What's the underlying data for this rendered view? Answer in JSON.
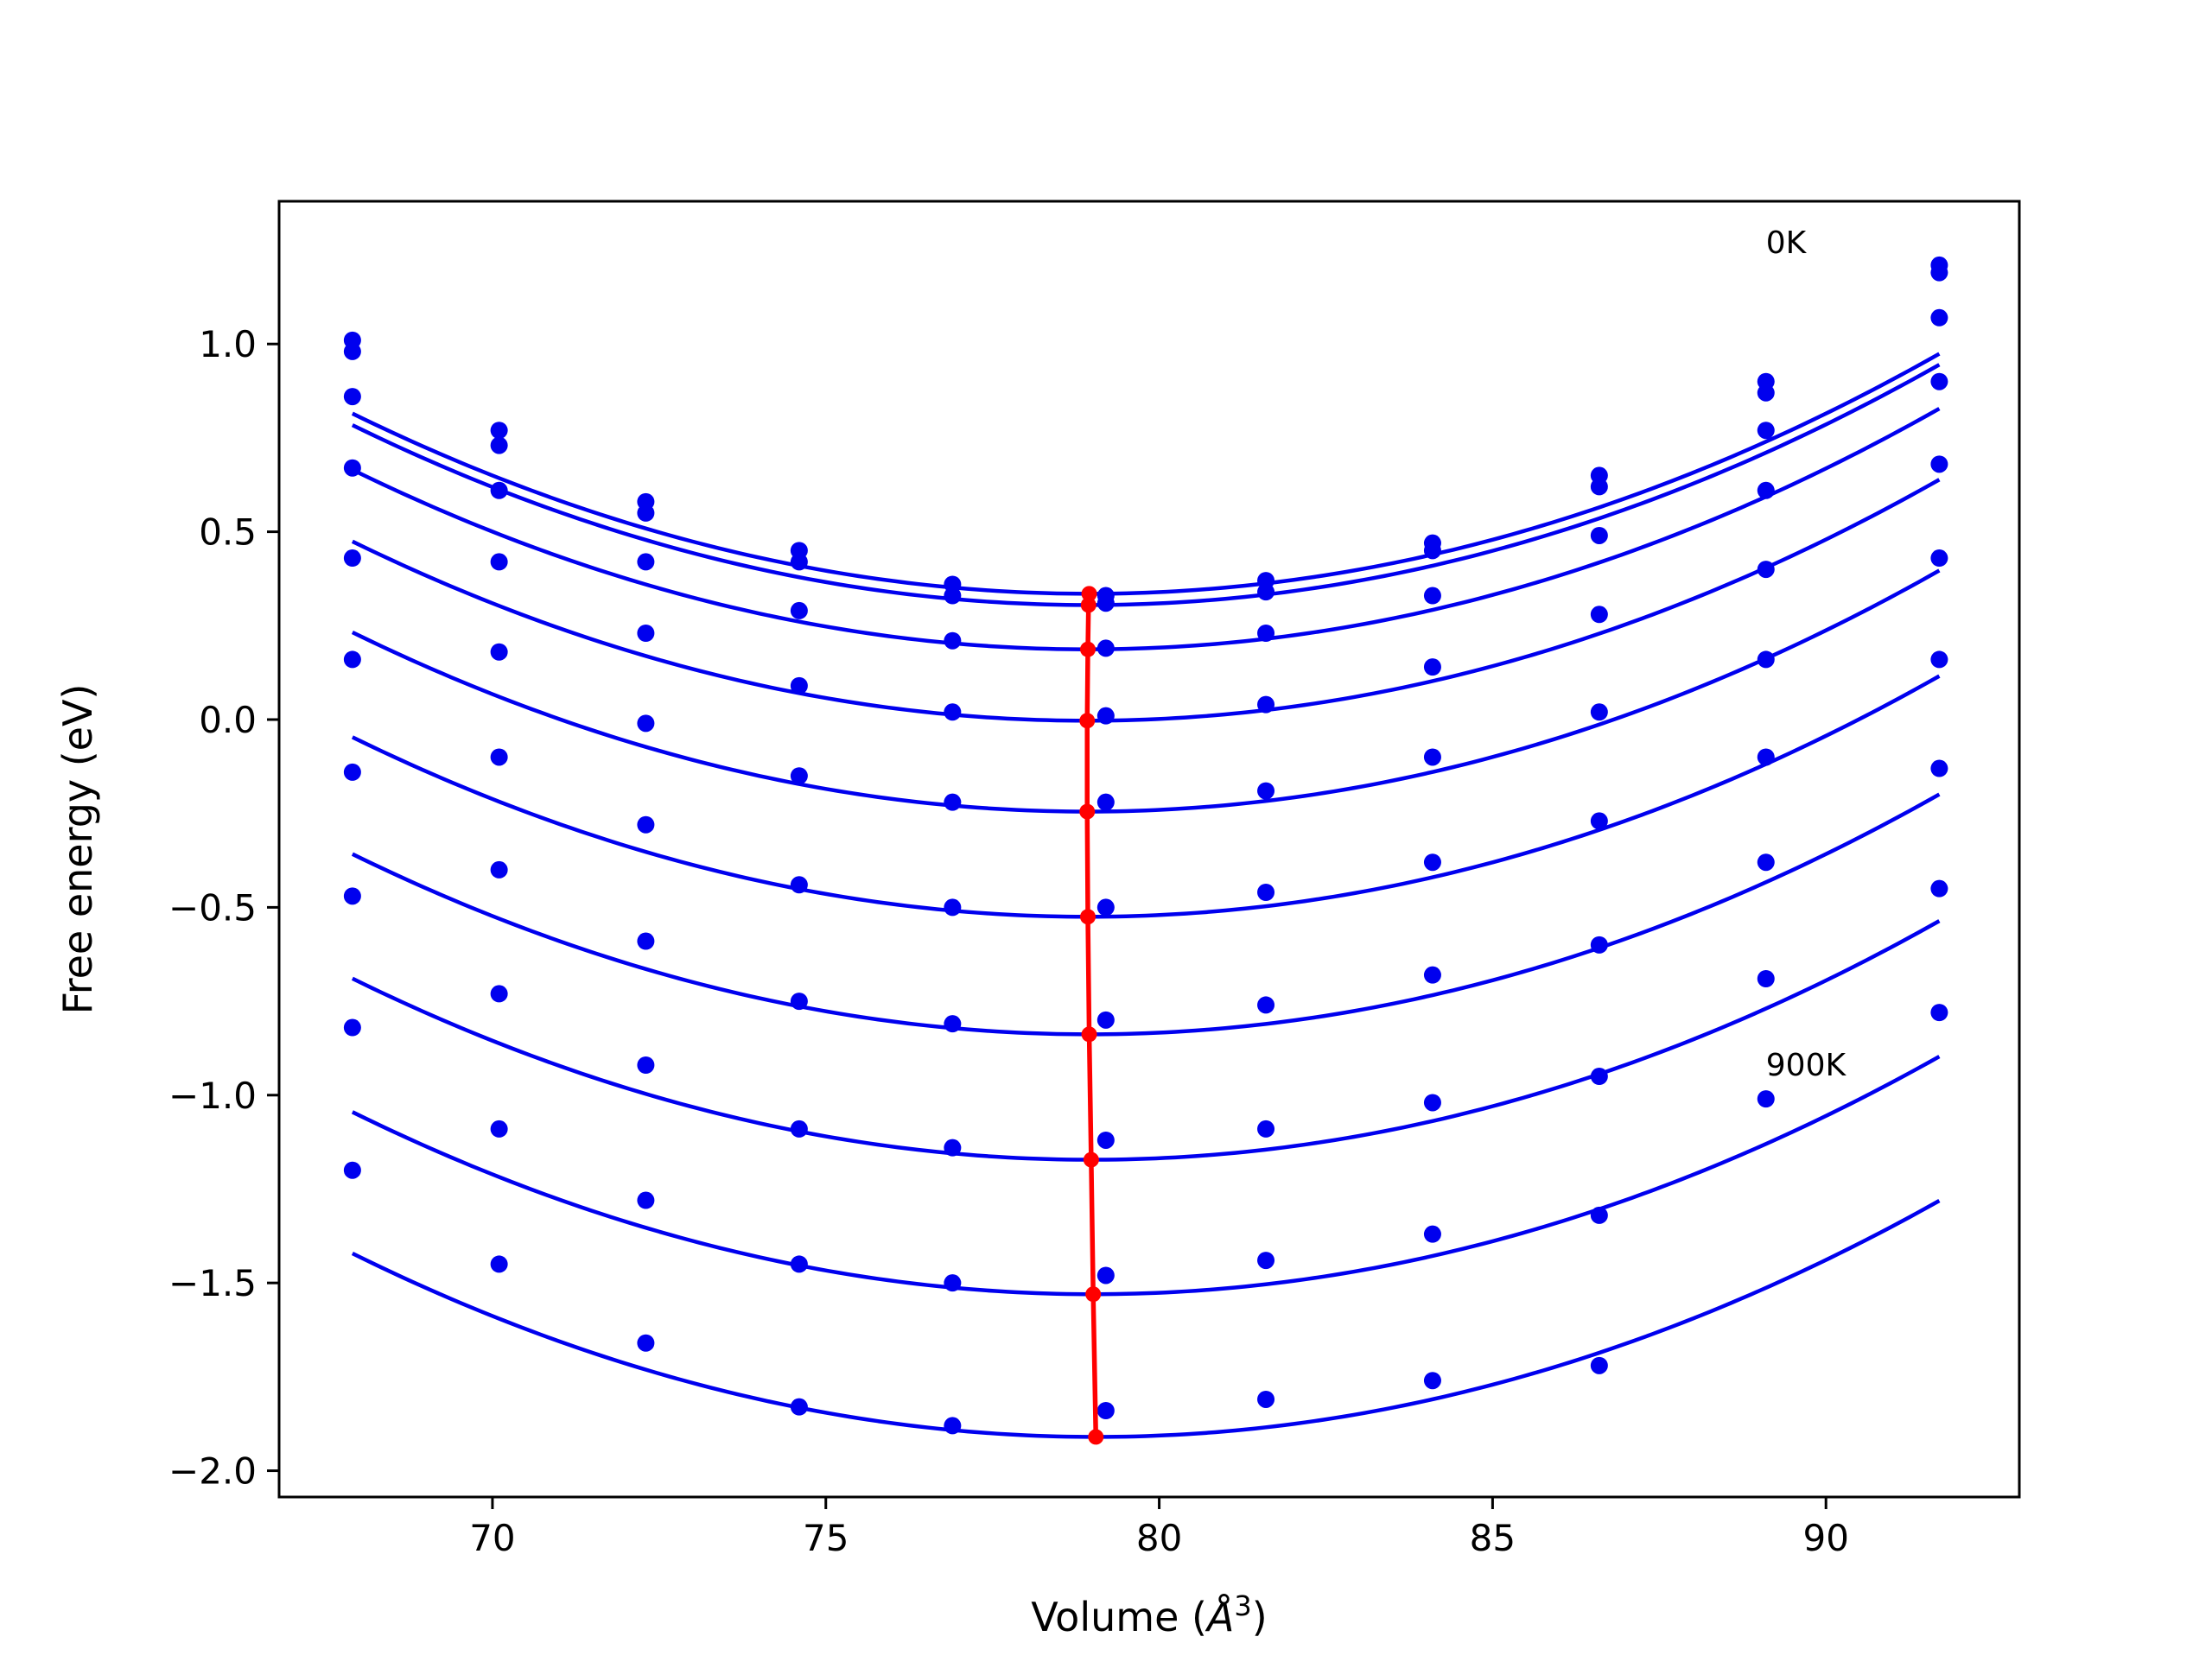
{
  "chart_data": {
    "type": "line",
    "title": "",
    "xlabel": "Volume (",
    "xlabel_symbol": "Å",
    "xlabel_exponent": "3",
    "xlabel_close": ")",
    "ylabel": "Free energy (eV)",
    "xlim": [
      66.8,
      92.9
    ],
    "ylim": [
      -2.07,
      1.38
    ],
    "xticks": [
      70,
      75,
      80,
      85,
      90
    ],
    "xtick_labels": [
      "70",
      "75",
      "80",
      "85",
      "90"
    ],
    "yticks": [
      1.0,
      0.5,
      0.0,
      -0.5,
      -1.0,
      -1.5,
      -2.0
    ],
    "ytick_labels": [
      "1.0",
      "0.5",
      "0.0",
      "−0.5",
      "−1.0",
      "−1.5",
      "−2.0"
    ],
    "grid": false,
    "colors": {
      "series": "#0000ee",
      "minima": "#ff0000",
      "axes": "#000000"
    },
    "annotations": [
      {
        "text": "0K",
        "x": 89.1,
        "y": 1.27
      },
      {
        "text": "900K",
        "x": 89.1,
        "y": -0.92
      }
    ],
    "x": [
      67.9,
      70.1,
      72.3,
      74.6,
      76.9,
      79.2,
      81.6,
      84.1,
      86.6,
      89.1,
      91.7
    ],
    "series": [
      {
        "values": [
          1.01,
          0.77,
          0.58,
          0.45,
          0.36,
          0.33,
          0.37,
          0.47,
          0.65,
          0.9,
          1.21
        ],
        "fit": {
          "vmin": 78.95,
          "emin": 0.335,
          "a": 0.00393
        }
      },
      {
        "values": [
          0.98,
          0.73,
          0.55,
          0.42,
          0.33,
          0.31,
          0.34,
          0.45,
          0.62,
          0.87,
          1.19
        ],
        "fit": {
          "vmin": 78.94,
          "emin": 0.305,
          "a": 0.00393
        }
      },
      {
        "values": [
          0.86,
          0.61,
          0.42,
          0.29,
          0.21,
          0.19,
          0.23,
          0.33,
          0.49,
          0.77,
          1.07
        ],
        "fit": {
          "vmin": 78.93,
          "emin": 0.187,
          "a": 0.00393
        }
      },
      {
        "values": [
          0.67,
          0.42,
          0.23,
          0.09,
          0.02,
          0.01,
          0.04,
          0.14,
          0.28,
          0.61,
          0.9
        ],
        "fit": {
          "vmin": 78.92,
          "emin": -0.003,
          "a": 0.00393
        }
      },
      {
        "values": [
          0.43,
          0.18,
          -0.01,
          -0.15,
          -0.22,
          -0.22,
          -0.19,
          -0.1,
          0.02,
          0.4,
          0.68
        ],
        "fit": {
          "vmin": 78.92,
          "emin": -0.245,
          "a": 0.00393
        }
      },
      {
        "values": [
          0.16,
          -0.1,
          -0.28,
          -0.44,
          -0.5,
          -0.5,
          -0.46,
          -0.38,
          -0.27,
          0.16,
          0.43
        ],
        "fit": {
          "vmin": 78.93,
          "emin": -0.525,
          "a": 0.00393
        }
      },
      {
        "values": [
          -0.14,
          -0.4,
          -0.59,
          -0.75,
          -0.81,
          -0.8,
          -0.76,
          -0.68,
          -0.6,
          -0.1,
          0.16
        ],
        "fit": {
          "vmin": 78.95,
          "emin": -0.838,
          "a": 0.00393
        }
      },
      {
        "values": [
          -0.47,
          -0.73,
          -0.92,
          -1.09,
          -1.14,
          -1.12,
          -1.09,
          -1.02,
          -0.95,
          -0.38,
          -0.13
        ],
        "fit": {
          "vmin": 78.98,
          "emin": -1.172,
          "a": 0.00393
        }
      },
      {
        "values": [
          -0.82,
          -1.09,
          -1.28,
          -1.45,
          -1.5,
          -1.48,
          -1.44,
          -1.37,
          -1.32,
          -0.69,
          -0.45
        ],
        "fit": {
          "vmin": 79.01,
          "emin": -1.53,
          "a": 0.00393
        }
      },
      {
        "values": [
          -1.2,
          -1.45,
          -1.66,
          -1.83,
          -1.88,
          -1.84,
          -1.81,
          -1.76,
          -1.72,
          -1.01,
          -0.78
        ],
        "fit": {
          "vmin": 79.05,
          "emin": -1.91,
          "a": 0.00393
        }
      }
    ],
    "minima": {
      "x": [
        78.95,
        78.94,
        78.93,
        78.92,
        78.92,
        78.93,
        78.95,
        78.98,
        79.01,
        79.05
      ],
      "y": [
        0.335,
        0.305,
        0.187,
        -0.003,
        -0.245,
        -0.525,
        -0.838,
        -1.172,
        -1.53,
        -1.91
      ]
    }
  }
}
